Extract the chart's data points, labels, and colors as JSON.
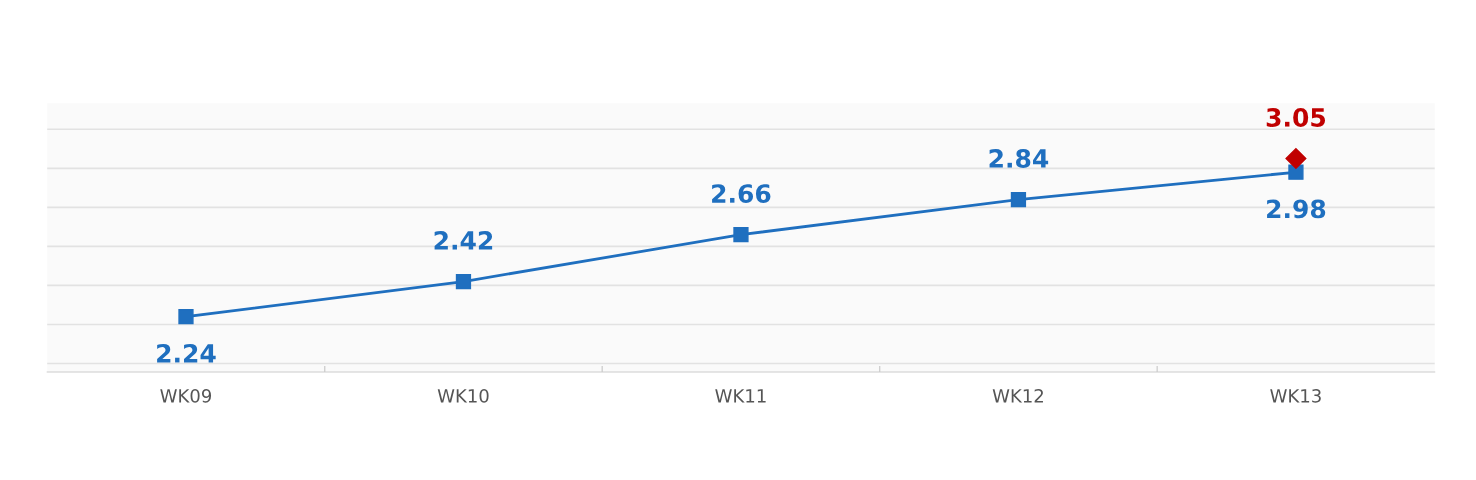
{
  "chart_data": {
    "type": "line",
    "categories": [
      "WK09",
      "WK10",
      "WK11",
      "WK12",
      "WK13"
    ],
    "series": [
      {
        "color": "#1f6fbf",
        "values": [
          2.24,
          2.42,
          2.66,
          2.84,
          2.98
        ],
        "marker": "square"
      },
      {
        "color": "#c00000",
        "values": [
          null,
          null,
          null,
          null,
          3.05
        ],
        "marker": "diamond"
      }
    ],
    "tick_labels": "x",
    "grid": "y",
    "data_labels": true,
    "line_style": "solid"
  }
}
